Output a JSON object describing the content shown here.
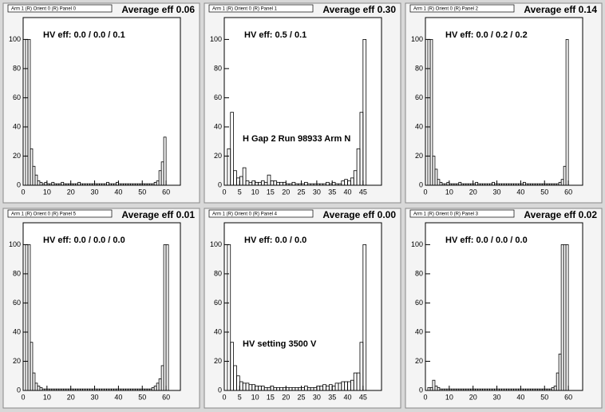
{
  "chart_data": [
    {
      "type": "histogram",
      "title": "Arm 1 (R) Orient 0 (R) Panel 0",
      "subtitle": "Average eff 0.06",
      "annotations": [
        "HV eff:   0.0 / 0.0 / 0.1"
      ],
      "bins": [
        0,
        1,
        2,
        3,
        4,
        5,
        6,
        7,
        8,
        9,
        10,
        11,
        12,
        13,
        14,
        15,
        16,
        17,
        18,
        19,
        20,
        21,
        22,
        23,
        24,
        25,
        26,
        27,
        28,
        29,
        30,
        31,
        32,
        33,
        34,
        35,
        36,
        37,
        38,
        39,
        40,
        41,
        42,
        43,
        44,
        45,
        46,
        47,
        48,
        49,
        50,
        51,
        52,
        53,
        54,
        55,
        56,
        57,
        58,
        59,
        60,
        61,
        62,
        63,
        64
      ],
      "values": [
        0,
        100,
        100,
        25,
        13,
        7,
        3,
        2,
        1,
        2,
        1,
        1,
        2,
        1,
        1,
        1,
        2,
        1,
        1,
        1,
        1,
        1,
        1,
        2,
        1,
        1,
        1,
        1,
        1,
        1,
        1,
        1,
        1,
        1,
        1,
        2,
        1,
        1,
        1,
        2,
        1,
        1,
        1,
        1,
        1,
        1,
        1,
        1,
        1,
        1,
        1,
        1,
        1,
        1,
        1,
        2,
        3,
        10,
        16,
        33,
        0,
        0,
        0,
        0
      ],
      "xlim": [
        0,
        66
      ],
      "ylim": [
        0,
        115
      ],
      "xticks": [
        0,
        10,
        20,
        30,
        40,
        50,
        60
      ],
      "yticks": [
        0,
        20,
        40,
        60,
        80,
        100
      ],
      "color": "#000000"
    },
    {
      "type": "histogram",
      "title": "Arm 1 (R) Orient 0 (R) Panel 1",
      "subtitle": "Average eff 0.30",
      "annotations": [
        "HV eff:   0.5 / 0.1",
        "H Gap 2 Run 98933 Arm N"
      ],
      "bins": [
        0,
        1,
        2,
        3,
        4,
        5,
        6,
        7,
        8,
        9,
        10,
        11,
        12,
        13,
        14,
        15,
        16,
        17,
        18,
        19,
        20,
        21,
        22,
        23,
        24,
        25,
        26,
        27,
        28,
        29,
        30,
        31,
        32,
        33,
        34,
        35,
        36,
        37,
        38,
        39,
        40,
        41,
        42,
        43,
        44,
        45,
        46,
        47,
        48
      ],
      "values": [
        0,
        25,
        50,
        10,
        5,
        6,
        12,
        3,
        2,
        3,
        2,
        2,
        3,
        2,
        7,
        3,
        3,
        2,
        2,
        2,
        1,
        1,
        2,
        1,
        1,
        1,
        2,
        1,
        1,
        1,
        1,
        1,
        1,
        2,
        1,
        2,
        1,
        1,
        3,
        4,
        3,
        5,
        10,
        25,
        50,
        100,
        0,
        0
      ],
      "xlim": [
        0,
        51
      ],
      "ylim": [
        0,
        115
      ],
      "xticks": [
        0,
        5,
        10,
        15,
        20,
        25,
        30,
        35,
        40,
        45
      ],
      "yticks": [
        0,
        20,
        40,
        60,
        80,
        100
      ],
      "color": "#000000"
    },
    {
      "type": "histogram",
      "title": "Arm 1 (R) Orient 0 (R) Panel 2",
      "subtitle": "Average eff 0.14",
      "annotations": [
        "HV eff:   0.0 / 0.2 / 0.2"
      ],
      "bins": [
        0,
        1,
        2,
        3,
        4,
        5,
        6,
        7,
        8,
        9,
        10,
        11,
        12,
        13,
        14,
        15,
        16,
        17,
        18,
        19,
        20,
        21,
        22,
        23,
        24,
        25,
        26,
        27,
        28,
        29,
        30,
        31,
        32,
        33,
        34,
        35,
        36,
        37,
        38,
        39,
        40,
        41,
        42,
        43,
        44,
        45,
        46,
        47,
        48,
        49,
        50,
        51,
        52,
        53,
        54,
        55,
        56,
        57,
        58,
        59,
        60,
        61,
        62,
        63,
        64
      ],
      "values": [
        0,
        100,
        100,
        20,
        11,
        4,
        2,
        1,
        1,
        2,
        1,
        1,
        1,
        1,
        2,
        1,
        1,
        1,
        1,
        1,
        1,
        2,
        1,
        1,
        1,
        1,
        1,
        1,
        2,
        1,
        1,
        1,
        1,
        1,
        1,
        1,
        1,
        1,
        1,
        1,
        1,
        2,
        1,
        1,
        1,
        1,
        1,
        1,
        1,
        1,
        1,
        1,
        1,
        1,
        1,
        1,
        2,
        4,
        13,
        100,
        0,
        0,
        0,
        0
      ],
      "xlim": [
        0,
        66
      ],
      "ylim": [
        0,
        115
      ],
      "xticks": [
        0,
        10,
        20,
        30,
        40,
        50,
        60
      ],
      "yticks": [
        0,
        20,
        40,
        60,
        80,
        100
      ],
      "color": "#000000"
    },
    {
      "type": "histogram",
      "title": "Arm 1 (R) Orient 0 (R) Panel 5",
      "subtitle": "Average eff 0.01",
      "annotations": [
        "HV eff:   0.0 / 0.0 / 0.0"
      ],
      "bins": [
        0,
        1,
        2,
        3,
        4,
        5,
        6,
        7,
        8,
        9,
        10,
        11,
        12,
        13,
        14,
        15,
        16,
        17,
        18,
        19,
        20,
        21,
        22,
        23,
        24,
        25,
        26,
        27,
        28,
        29,
        30,
        31,
        32,
        33,
        34,
        35,
        36,
        37,
        38,
        39,
        40,
        41,
        42,
        43,
        44,
        45,
        46,
        47,
        48,
        49,
        50,
        51,
        52,
        53,
        54,
        55,
        56,
        57,
        58,
        59,
        60,
        61,
        62,
        63,
        64
      ],
      "values": [
        0,
        100,
        100,
        33,
        12,
        5,
        3,
        2,
        1,
        1,
        1,
        1,
        1,
        1,
        1,
        1,
        1,
        1,
        1,
        1,
        1,
        1,
        1,
        1,
        1,
        1,
        1,
        1,
        1,
        1,
        1,
        1,
        1,
        1,
        1,
        1,
        1,
        1,
        1,
        1,
        1,
        1,
        1,
        1,
        1,
        1,
        1,
        1,
        1,
        1,
        1,
        1,
        1,
        1,
        2,
        3,
        5,
        8,
        17,
        100,
        100,
        0,
        0,
        0
      ],
      "xlim": [
        0,
        66
      ],
      "ylim": [
        0,
        115
      ],
      "xticks": [
        0,
        10,
        20,
        30,
        40,
        50,
        60
      ],
      "yticks": [
        0,
        20,
        40,
        60,
        80,
        100
      ],
      "color": "#000000"
    },
    {
      "type": "histogram",
      "title": "Arm 1 (R) Orient 0 (R) Panel 4",
      "subtitle": "Average eff 0.00",
      "annotations": [
        "HV eff:   0.0 / 0.0",
        "HV setting 3500 V"
      ],
      "bins": [
        0,
        1,
        2,
        3,
        4,
        5,
        6,
        7,
        8,
        9,
        10,
        11,
        12,
        13,
        14,
        15,
        16,
        17,
        18,
        19,
        20,
        21,
        22,
        23,
        24,
        25,
        26,
        27,
        28,
        29,
        30,
        31,
        32,
        33,
        34,
        35,
        36,
        37,
        38,
        39,
        40,
        41,
        42,
        43,
        44,
        45,
        46,
        47,
        48
      ],
      "values": [
        0,
        100,
        33,
        17,
        10,
        6,
        5,
        5,
        4,
        4,
        3,
        3,
        3,
        2,
        2,
        3,
        2,
        2,
        2,
        2,
        2,
        2,
        2,
        2,
        2,
        2,
        3,
        2,
        2,
        2,
        3,
        3,
        4,
        3,
        4,
        3,
        5,
        5,
        6,
        6,
        6,
        7,
        12,
        12,
        33,
        100,
        0,
        0
      ],
      "xlim": [
        0,
        51
      ],
      "ylim": [
        0,
        115
      ],
      "xticks": [
        0,
        5,
        10,
        15,
        20,
        25,
        30,
        35,
        40,
        45
      ],
      "yticks": [
        0,
        20,
        40,
        60,
        80,
        100
      ],
      "color": "#000000"
    },
    {
      "type": "histogram",
      "title": "Arm 1 (R) Orient 0 (R) Panel 3",
      "subtitle": "Average eff 0.02",
      "annotations": [
        "HV eff:   0.0 / 0.0 / 0.0"
      ],
      "bins": [
        0,
        1,
        2,
        3,
        4,
        5,
        6,
        7,
        8,
        9,
        10,
        11,
        12,
        13,
        14,
        15,
        16,
        17,
        18,
        19,
        20,
        21,
        22,
        23,
        24,
        25,
        26,
        27,
        28,
        29,
        30,
        31,
        32,
        33,
        34,
        35,
        36,
        37,
        38,
        39,
        40,
        41,
        42,
        43,
        44,
        45,
        46,
        47,
        48,
        49,
        50,
        51,
        52,
        53,
        54,
        55,
        56,
        57,
        58,
        59,
        60,
        61,
        62,
        63,
        64
      ],
      "values": [
        0,
        2,
        2,
        7,
        3,
        2,
        1,
        1,
        1,
        1,
        1,
        1,
        1,
        1,
        1,
        1,
        1,
        1,
        1,
        1,
        1,
        1,
        1,
        1,
        1,
        1,
        1,
        1,
        1,
        1,
        1,
        1,
        1,
        1,
        1,
        1,
        1,
        1,
        1,
        1,
        1,
        1,
        1,
        1,
        1,
        1,
        1,
        1,
        1,
        1,
        1,
        1,
        1,
        2,
        3,
        12,
        25,
        100,
        100,
        100,
        0,
        0,
        0,
        0
      ],
      "xlim": [
        0,
        66
      ],
      "ylim": [
        0,
        115
      ],
      "xticks": [
        0,
        10,
        20,
        30,
        40,
        50,
        60
      ],
      "yticks": [
        0,
        20,
        40,
        60,
        80,
        100
      ],
      "color": "#000000"
    }
  ]
}
